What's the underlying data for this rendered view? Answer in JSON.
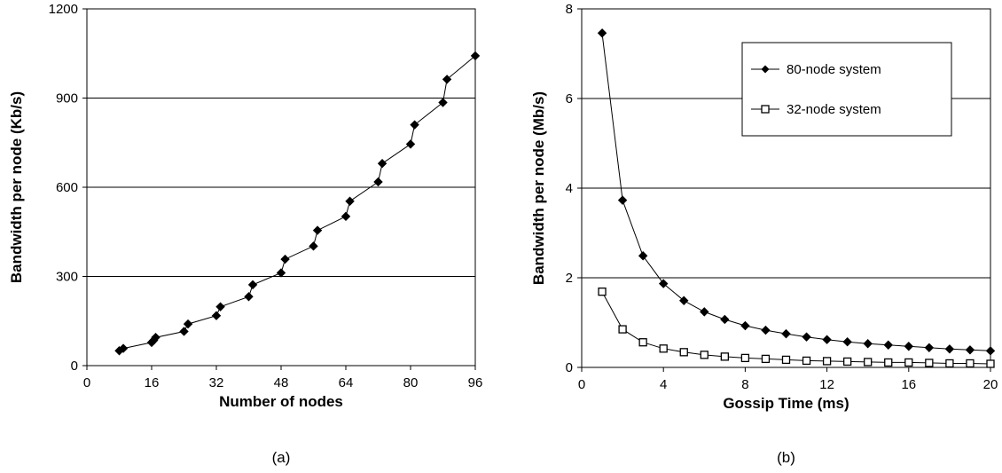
{
  "chart_data": [
    {
      "type": "line",
      "caption": "(a)",
      "xlabel": "Number of nodes",
      "ylabel": "Bandwidth per node (Kb/s)",
      "xlim": [
        0,
        96
      ],
      "ylim": [
        0,
        1200
      ],
      "xticks": [
        "0",
        "16",
        "32",
        "48",
        "64",
        "80",
        "96"
      ],
      "yticks": [
        "0",
        "300",
        "600",
        "900",
        "1200"
      ],
      "grid": "horizontal",
      "series": [
        {
          "marker": "filled-diamond",
          "color": "#000000",
          "points": [
            [
              8,
              50
            ],
            [
              9,
              58
            ],
            [
              16,
              78
            ],
            [
              16.5,
              85
            ],
            [
              17,
              95
            ],
            [
              24,
              115
            ],
            [
              25,
              140
            ],
            [
              32,
              168
            ],
            [
              33,
              198
            ],
            [
              40,
              232
            ],
            [
              41,
              272
            ],
            [
              48,
              312
            ],
            [
              49,
              358
            ],
            [
              56,
              402
            ],
            [
              57,
              455
            ],
            [
              64,
              502
            ],
            [
              65,
              553
            ],
            [
              72,
              618
            ],
            [
              73,
              680
            ],
            [
              80,
              745
            ],
            [
              81,
              810
            ],
            [
              88,
              885
            ],
            [
              89,
              963
            ],
            [
              96,
              1042
            ]
          ]
        }
      ]
    },
    {
      "type": "line",
      "caption": "(b)",
      "xlabel": "Gossip Time (ms)",
      "ylabel": "Bandwidth per node (Mb/s)",
      "xlim": [
        0,
        20
      ],
      "ylim": [
        0,
        8
      ],
      "xticks": [
        "0",
        "4",
        "8",
        "12",
        "16",
        "20"
      ],
      "yticks": [
        "0",
        "2",
        "4",
        "6",
        "8"
      ],
      "grid": "horizontal",
      "legend": "top-right",
      "series": [
        {
          "name": "80-node system",
          "marker": "filled-diamond",
          "color": "#000000",
          "x": [
            1,
            2,
            3,
            4,
            5,
            6,
            7,
            8,
            9,
            10,
            11,
            12,
            13,
            14,
            15,
            16,
            17,
            18,
            19,
            20
          ],
          "y": [
            7.46,
            3.73,
            2.49,
            1.87,
            1.49,
            1.24,
            1.07,
            0.93,
            0.83,
            0.75,
            0.68,
            0.62,
            0.57,
            0.53,
            0.5,
            0.47,
            0.44,
            0.41,
            0.39,
            0.37
          ]
        },
        {
          "name": "32-node system",
          "marker": "open-square",
          "color": "#000000",
          "x": [
            1,
            2,
            3,
            4,
            5,
            6,
            7,
            8,
            9,
            10,
            11,
            12,
            13,
            14,
            15,
            16,
            17,
            18,
            19,
            20
          ],
          "y": [
            1.69,
            0.85,
            0.56,
            0.42,
            0.34,
            0.28,
            0.24,
            0.21,
            0.19,
            0.17,
            0.15,
            0.14,
            0.13,
            0.12,
            0.11,
            0.11,
            0.1,
            0.09,
            0.09,
            0.08
          ]
        }
      ]
    }
  ]
}
